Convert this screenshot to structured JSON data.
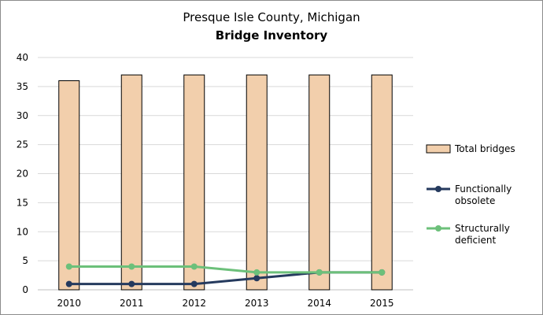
{
  "chart_data": {
    "type": "bar",
    "title": "Presque Isle County, Michigan",
    "subtitle": "Bridge Inventory",
    "categories": [
      "2010",
      "2011",
      "2012",
      "2013",
      "2014",
      "2015"
    ],
    "ylim": [
      0,
      40
    ],
    "yticks": [
      0,
      5,
      10,
      15,
      20,
      25,
      30,
      35,
      40
    ],
    "grid": true,
    "legend_position": "right",
    "series": [
      {
        "name": "Total bridges",
        "kind": "bar",
        "values": [
          36,
          37,
          37,
          37,
          37,
          37
        ],
        "color": "#f2cfac",
        "stroke": "#000000"
      },
      {
        "name": "Functionally obsolete",
        "legend_lines": [
          "Functionally",
          "obsolete"
        ],
        "kind": "line",
        "values": [
          1,
          1,
          1,
          2,
          3,
          3
        ],
        "color": "#253a5e"
      },
      {
        "name": "Structurally deficient",
        "legend_lines": [
          "Structurally",
          "deficient"
        ],
        "kind": "line",
        "values": [
          4,
          4,
          4,
          3,
          3,
          3
        ],
        "color": "#6cc07a"
      }
    ]
  }
}
